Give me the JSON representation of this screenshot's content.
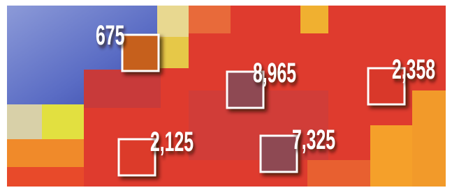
{
  "markers": [
    {
      "label": "675",
      "color": "#c6601f"
    },
    {
      "label": "8,965",
      "color": "#8e4a52"
    },
    {
      "label": "2,358",
      "color": "#d9382c"
    },
    {
      "label": "2,125",
      "color": "#dc3a2c"
    },
    {
      "label": "7,325",
      "color": "#8e4a52"
    }
  ]
}
